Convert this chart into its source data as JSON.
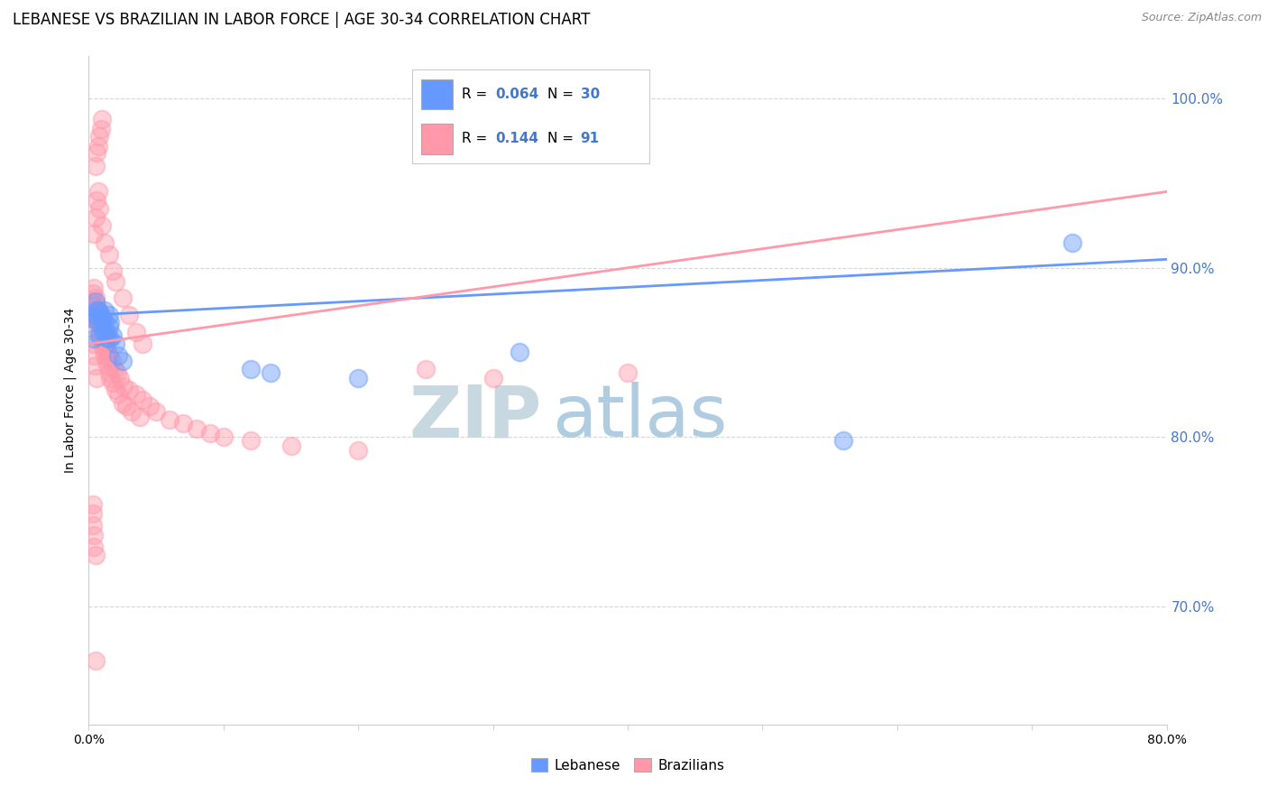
{
  "title": "LEBANESE VS BRAZILIAN IN LABOR FORCE | AGE 30-34 CORRELATION CHART",
  "source": "Source: ZipAtlas.com",
  "ylabel": "In Labor Force | Age 30-34",
  "xlim": [
    0.0,
    0.8
  ],
  "ylim": [
    0.63,
    1.025
  ],
  "yticks": [
    0.7,
    0.8,
    0.9,
    1.0
  ],
  "ytick_labels": [
    "70.0%",
    "80.0%",
    "90.0%",
    "100.0%"
  ],
  "xticks": [
    0.0,
    0.1,
    0.2,
    0.3,
    0.4,
    0.5,
    0.6,
    0.7,
    0.8
  ],
  "xtick_labels": [
    "0.0%",
    "",
    "",
    "",
    "",
    "",
    "",
    "",
    "80.0%"
  ],
  "color_blue": "#6699ff",
  "color_pink": "#ff99aa",
  "R_blue": 0.064,
  "N_blue": 30,
  "R_pink": 0.144,
  "N_pink": 91,
  "watermark_zip": "ZIP",
  "watermark_atlas": "atlas",
  "watermark_color_zip": "#c8d8e0",
  "watermark_color_atlas": "#b0cce0",
  "title_fontsize": 12,
  "axis_label_fontsize": 10,
  "tick_color_blue": "#4477cc",
  "blue_scatter_x": [
    0.003,
    0.004,
    0.005,
    0.005,
    0.006,
    0.007,
    0.007,
    0.008,
    0.009,
    0.01,
    0.01,
    0.011,
    0.012,
    0.012,
    0.013,
    0.014,
    0.015,
    0.015,
    0.016,
    0.016,
    0.018,
    0.02,
    0.022,
    0.025,
    0.12,
    0.135,
    0.2,
    0.32,
    0.56,
    0.73
  ],
  "blue_scatter_y": [
    0.87,
    0.858,
    0.872,
    0.88,
    0.875,
    0.868,
    0.875,
    0.86,
    0.872,
    0.865,
    0.87,
    0.862,
    0.868,
    0.875,
    0.862,
    0.858,
    0.865,
    0.872,
    0.858,
    0.868,
    0.86,
    0.855,
    0.848,
    0.845,
    0.84,
    0.838,
    0.835,
    0.85,
    0.798,
    0.915
  ],
  "pink_scatter_x": [
    0.002,
    0.002,
    0.003,
    0.003,
    0.004,
    0.004,
    0.004,
    0.005,
    0.005,
    0.005,
    0.006,
    0.006,
    0.007,
    0.007,
    0.008,
    0.008,
    0.009,
    0.009,
    0.01,
    0.01,
    0.01,
    0.011,
    0.011,
    0.012,
    0.012,
    0.013,
    0.013,
    0.014,
    0.014,
    0.015,
    0.015,
    0.016,
    0.017,
    0.018,
    0.019,
    0.02,
    0.021,
    0.022,
    0.023,
    0.025,
    0.026,
    0.028,
    0.03,
    0.032,
    0.035,
    0.038,
    0.04,
    0.045,
    0.05,
    0.06,
    0.07,
    0.08,
    0.09,
    0.1,
    0.12,
    0.15,
    0.2,
    0.25,
    0.3,
    0.4,
    0.004,
    0.005,
    0.006,
    0.007,
    0.008,
    0.01,
    0.012,
    0.015,
    0.018,
    0.02,
    0.025,
    0.03,
    0.035,
    0.04,
    0.005,
    0.006,
    0.007,
    0.008,
    0.009,
    0.01,
    0.003,
    0.004,
    0.005,
    0.006,
    0.003,
    0.003,
    0.003,
    0.004,
    0.004,
    0.005,
    0.005
  ],
  "pink_scatter_y": [
    0.87,
    0.88,
    0.878,
    0.885,
    0.872,
    0.878,
    0.888,
    0.868,
    0.875,
    0.882,
    0.87,
    0.878,
    0.868,
    0.875,
    0.862,
    0.87,
    0.858,
    0.865,
    0.855,
    0.862,
    0.87,
    0.852,
    0.86,
    0.848,
    0.856,
    0.845,
    0.852,
    0.842,
    0.85,
    0.838,
    0.848,
    0.835,
    0.845,
    0.832,
    0.84,
    0.828,
    0.838,
    0.825,
    0.835,
    0.82,
    0.83,
    0.818,
    0.828,
    0.815,
    0.825,
    0.812,
    0.822,
    0.818,
    0.815,
    0.81,
    0.808,
    0.805,
    0.802,
    0.8,
    0.798,
    0.795,
    0.792,
    0.84,
    0.835,
    0.838,
    0.92,
    0.93,
    0.94,
    0.945,
    0.935,
    0.925,
    0.915,
    0.908,
    0.898,
    0.892,
    0.882,
    0.872,
    0.862,
    0.855,
    0.96,
    0.968,
    0.972,
    0.978,
    0.982,
    0.988,
    0.855,
    0.848,
    0.842,
    0.835,
    0.76,
    0.755,
    0.748,
    0.742,
    0.735,
    0.73,
    0.668
  ]
}
